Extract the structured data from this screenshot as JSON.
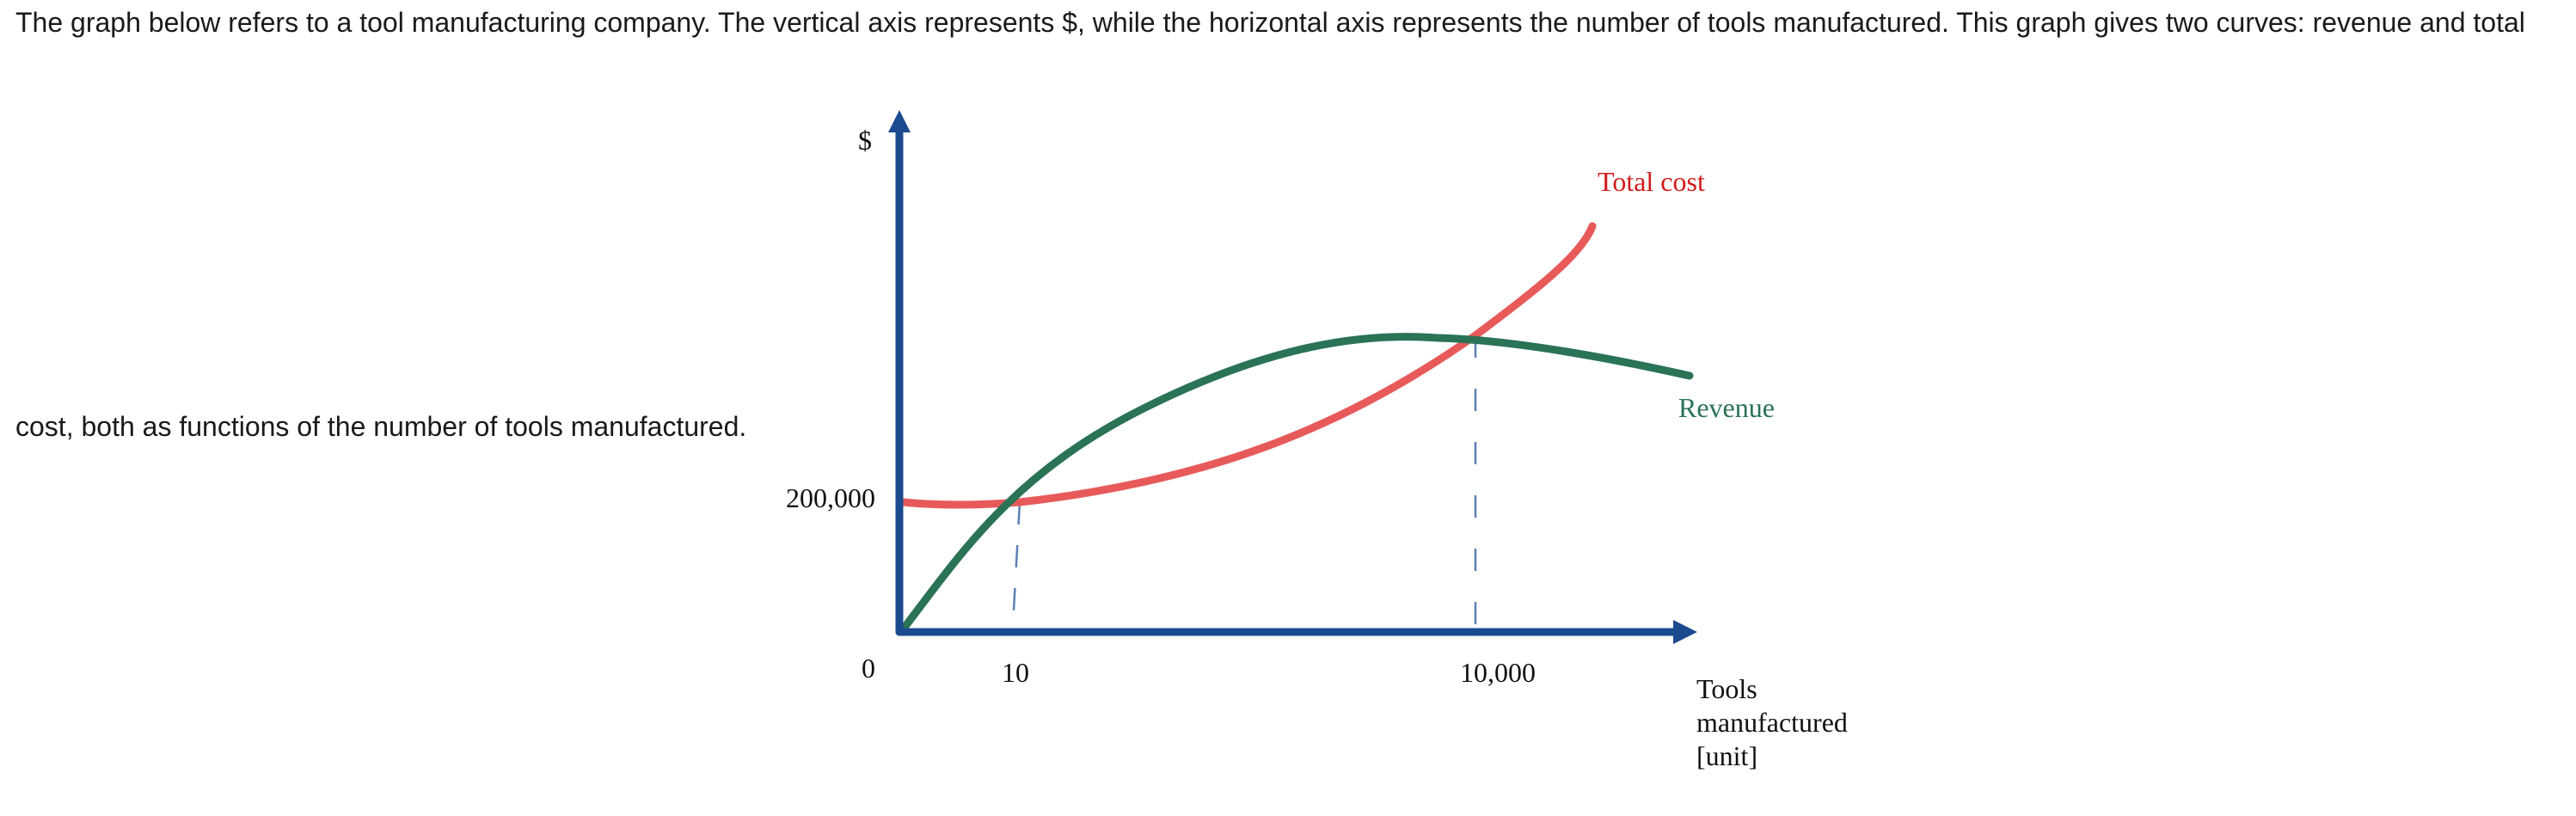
{
  "question": {
    "line1": "The graph below refers to a tool manufacturing company. The vertical axis represents $, while the horizontal axis represents the number of tools manufactured. This graph gives two curves: revenue and total",
    "line2": "cost, both as functions of the number of tools manufactured."
  },
  "chart_data": {
    "type": "line",
    "x_label_lines": [
      "Tools",
      "manufactured",
      "[unit]"
    ],
    "y_label": "$",
    "x_ticks": [
      "0",
      "10",
      "10,000"
    ],
    "y_ticks": [
      "200,000"
    ],
    "series": [
      {
        "name": "Total cost",
        "color": "#e85a5a"
      },
      {
        "name": "Revenue",
        "color": "#2a7356"
      }
    ],
    "intersections": [
      {
        "x": 10,
        "y": 200000
      },
      {
        "x": 10000
      }
    ],
    "axis_color": "#1b4a8f",
    "guide_color": "#5b7fb5",
    "grid": false
  }
}
